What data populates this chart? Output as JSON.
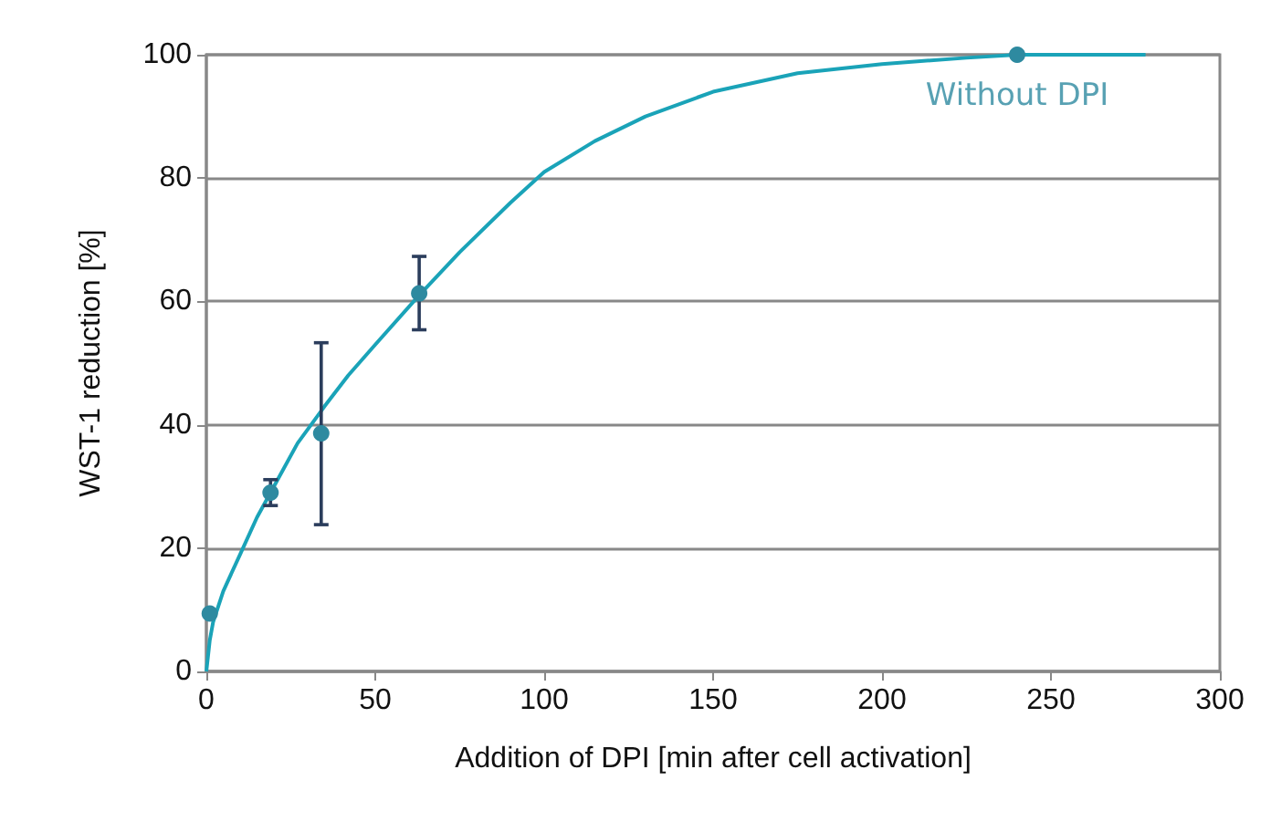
{
  "chart_data": {
    "type": "scatter",
    "xlabel": "Addition of DPI [min after cell activation]",
    "ylabel": "WST-1 reduction [%]",
    "xlim": [
      0,
      300
    ],
    "xticks": [
      0,
      50,
      100,
      150,
      200,
      250,
      300
    ],
    "ylim": [
      0,
      100
    ],
    "yticks": [
      0,
      20,
      40,
      60,
      80,
      100
    ],
    "grid": "y",
    "series": [
      {
        "type": "line",
        "color": "#1aa3b8",
        "x": [
          0,
          1,
          2,
          5,
          10,
          15,
          20,
          27,
          35,
          42,
          50,
          63,
          75,
          90,
          100,
          115,
          130,
          150,
          175,
          200,
          225,
          240,
          278
        ],
        "values": [
          0,
          5,
          8,
          13,
          19,
          25,
          30,
          37,
          43,
          48,
          53,
          61,
          68,
          76,
          81,
          86,
          90,
          94,
          97,
          98.5,
          99.5,
          100,
          100
        ]
      },
      {
        "color": "#2e8aa0",
        "marker": "circle",
        "x": [
          1,
          19,
          34,
          63,
          240
        ],
        "values": [
          9.4,
          29,
          38.6,
          61.3,
          100
        ],
        "errors": [
          null,
          [
            26.9,
            31.1
          ],
          [
            23.8,
            53.3
          ],
          [
            55.4,
            67.3
          ],
          null
        ]
      }
    ],
    "annotations": [
      {
        "text": "Without DPI",
        "x": 240,
        "y": 100
      }
    ]
  }
}
